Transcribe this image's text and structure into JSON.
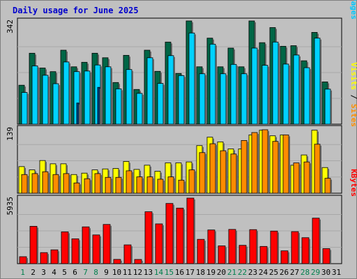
{
  "title": "Daily usage for June 2025",
  "colors": {
    "background": "#c0c0c0",
    "title": "#0000cc",
    "hits": "#006646",
    "files": "#00d2ff",
    "pages": "#00407c",
    "visits": "#ffff00",
    "sites": "#ff8c00",
    "kbytes": "#ff0000",
    "day_label": "#0000cc",
    "weekend_label": "#00804d"
  },
  "chart_data": [
    {
      "type": "bar",
      "panel": "hits-files-pages",
      "categories": [
        "1",
        "2",
        "3",
        "4",
        "5",
        "6",
        "7",
        "8",
        "9",
        "10",
        "11",
        "12",
        "13",
        "14",
        "15",
        "16",
        "17",
        "18",
        "19",
        "20",
        "21",
        "22",
        "23",
        "24",
        "25",
        "26",
        "27",
        "28",
        "29",
        "30",
        "31"
      ],
      "y_max_label": "342",
      "ylim": [
        0,
        342
      ],
      "ylabel_parts": [
        "Pages",
        "Files",
        "Hits"
      ],
      "series": [
        {
          "name": "Hits",
          "values": [
            129,
            235,
            186,
            174,
            245,
            190,
            205,
            235,
            220,
            138,
            228,
            115,
            245,
            175,
            272,
            168,
            342,
            190,
            285,
            190,
            252,
            190,
            342,
            270,
            320,
            258,
            260,
            210,
            304,
            140,
            0
          ]
        },
        {
          "name": "Files",
          "values": [
            105,
            193,
            162,
            134,
            206,
            174,
            176,
            196,
            190,
            117,
            181,
            102,
            220,
            135,
            227,
            161,
            302,
            167,
            265,
            167,
            198,
            167,
            252,
            195,
            272,
            199,
            229,
            187,
            285,
            116,
            0
          ]
        },
        {
          "name": "Pages",
          "values": [
            0,
            0,
            0,
            0,
            0,
            70,
            0,
            122,
            0,
            0,
            0,
            0,
            0,
            0,
            0,
            0,
            0,
            0,
            0,
            0,
            0,
            0,
            0,
            0,
            0,
            0,
            0,
            0,
            0,
            0,
            0
          ]
        }
      ]
    },
    {
      "type": "bar",
      "panel": "visits-sites",
      "categories": [
        "1",
        "2",
        "3",
        "4",
        "5",
        "6",
        "7",
        "8",
        "9",
        "10",
        "11",
        "12",
        "13",
        "14",
        "15",
        "16",
        "17",
        "18",
        "19",
        "20",
        "21",
        "22",
        "23",
        "24",
        "25",
        "26",
        "27",
        "28",
        "29",
        "30",
        "31"
      ],
      "y_max_label": "139",
      "ylim": [
        0,
        139
      ],
      "ylabel_parts": [
        "Sites",
        "Visits"
      ],
      "series": [
        {
          "name": "Visits",
          "values": [
            57,
            50,
            70,
            63,
            63,
            40,
            43,
            50,
            52,
            53,
            68,
            51,
            60,
            47,
            65,
            65,
            67,
            102,
            120,
            110,
            95,
            95,
            125,
            135,
            123,
            125,
            60,
            82,
            135,
            55,
            0
          ]
        },
        {
          "name": "Sites",
          "values": [
            40,
            42,
            46,
            40,
            42,
            22,
            31,
            42,
            34,
            34,
            48,
            35,
            35,
            30,
            35,
            28,
            50,
            87,
            106,
            91,
            84,
            113,
            130,
            136,
            111,
            125,
            65,
            67,
            105,
            32,
            0
          ]
        }
      ]
    },
    {
      "type": "bar",
      "panel": "kbytes",
      "categories": [
        "1",
        "2",
        "3",
        "4",
        "5",
        "6",
        "7",
        "8",
        "9",
        "10",
        "11",
        "12",
        "13",
        "14",
        "15",
        "16",
        "17",
        "18",
        "19",
        "20",
        "21",
        "22",
        "23",
        "24",
        "25",
        "26",
        "27",
        "28",
        "29",
        "30",
        "31"
      ],
      "y_max_label": "5935",
      "ylim": [
        0,
        5935
      ],
      "ylabel_parts": [
        "KBytes"
      ],
      "series": [
        {
          "name": "KBytes",
          "values": [
            630,
            3380,
            1000,
            1250,
            2880,
            2250,
            3330,
            2600,
            3550,
            385,
            1700,
            380,
            4700,
            3600,
            5450,
            5030,
            5935,
            2200,
            3050,
            1610,
            3100,
            1660,
            3080,
            1560,
            2950,
            1160,
            2900,
            2350,
            4120,
            1360,
            0
          ]
        }
      ]
    }
  ]
}
